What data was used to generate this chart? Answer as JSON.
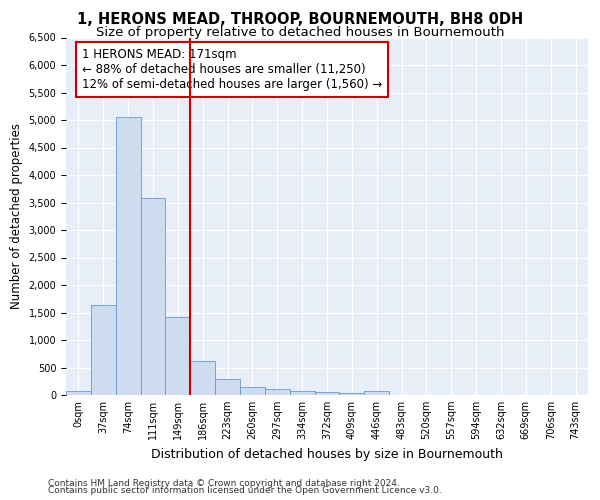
{
  "title": "1, HERONS MEAD, THROOP, BOURNEMOUTH, BH8 0DH",
  "subtitle": "Size of property relative to detached houses in Bournemouth",
  "xlabel": "Distribution of detached houses by size in Bournemouth",
  "ylabel": "Number of detached properties",
  "bar_labels": [
    "0sqm",
    "37sqm",
    "74sqm",
    "111sqm",
    "149sqm",
    "186sqm",
    "223sqm",
    "260sqm",
    "297sqm",
    "334sqm",
    "372sqm",
    "409sqm",
    "446sqm",
    "483sqm",
    "520sqm",
    "557sqm",
    "594sqm",
    "632sqm",
    "669sqm",
    "706sqm",
    "743sqm"
  ],
  "bar_values": [
    75,
    1630,
    5060,
    3580,
    1410,
    620,
    290,
    145,
    105,
    65,
    50,
    30,
    65,
    0,
    0,
    0,
    0,
    0,
    0,
    0,
    0
  ],
  "bar_color": "#cddcee",
  "bar_edgecolor": "#6699cc",
  "vline_x": 5.0,
  "vline_color": "#cc0000",
  "annotation_text": "1 HERONS MEAD: 171sqm\n← 88% of detached houses are smaller (11,250)\n12% of semi-detached houses are larger (1,560) →",
  "annotation_box_color": "#ffffff",
  "annotation_box_edgecolor": "#cc0000",
  "ylim": [
    0,
    6500
  ],
  "yticks": [
    0,
    500,
    1000,
    1500,
    2000,
    2500,
    3000,
    3500,
    4000,
    4500,
    5000,
    5500,
    6000,
    6500
  ],
  "bg_color": "#e8eef8",
  "grid_color": "#ffffff",
  "footer_line1": "Contains HM Land Registry data © Crown copyright and database right 2024.",
  "footer_line2": "Contains public sector information licensed under the Open Government Licence v3.0.",
  "title_fontsize": 10.5,
  "subtitle_fontsize": 9.5,
  "xlabel_fontsize": 9,
  "ylabel_fontsize": 8.5,
  "tick_fontsize": 7,
  "annotation_fontsize": 8.5,
  "footer_fontsize": 6.5
}
